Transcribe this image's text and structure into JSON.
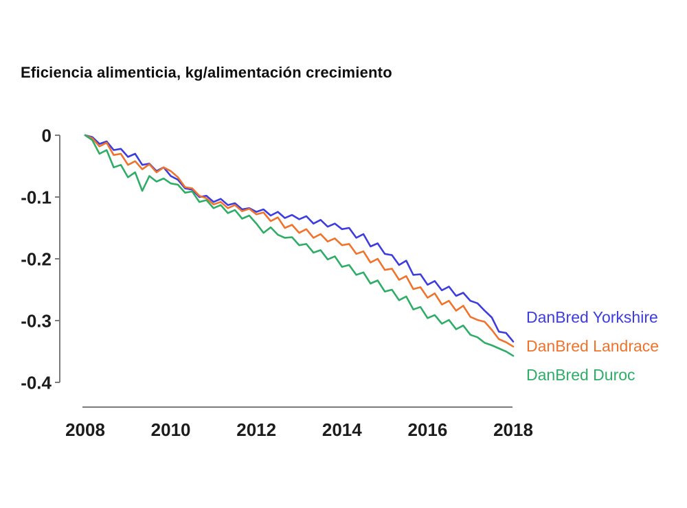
{
  "title": "Eficiencia alimenticia, kg/alimentación crecimiento",
  "colors": {
    "background": "#ffffff",
    "axis": "#7a7a7a",
    "tick_text": "#1c1c1c",
    "yorkshire_blue": "#3c3cdf",
    "landrace_orange": "#f0722b",
    "duroc_green": "#2ead67"
  },
  "chart_data": {
    "type": "line",
    "title": "Eficiencia alimenticia, kg/alimentación crecimiento",
    "xlabel": "",
    "ylabel": "",
    "x": {
      "start": 2008,
      "end": 2018,
      "points": 61
    },
    "xlim": [
      2008,
      2018
    ],
    "ylim": [
      -0.4,
      0
    ],
    "x_ticks": [
      "2008",
      "2010",
      "2012",
      "2014",
      "2016",
      "2018"
    ],
    "x_tick_values": [
      2008,
      2010,
      2012,
      2014,
      2016,
      2018
    ],
    "y_ticks": [
      "0",
      "-0.1",
      "-0.2",
      "-0.3",
      "-0.4"
    ],
    "y_tick_values": [
      0,
      -0.1,
      -0.2,
      -0.3,
      -0.4
    ],
    "grid": false,
    "legend_position": "right",
    "series": [
      {
        "name": "DanBred Yorkshire",
        "color": "#3c3cdf",
        "values": [
          0.0,
          -0.003,
          -0.014,
          -0.01,
          -0.024,
          -0.022,
          -0.035,
          -0.03,
          -0.048,
          -0.046,
          -0.058,
          -0.052,
          -0.066,
          -0.072,
          -0.086,
          -0.088,
          -0.1,
          -0.098,
          -0.108,
          -0.103,
          -0.113,
          -0.11,
          -0.12,
          -0.118,
          -0.124,
          -0.12,
          -0.13,
          -0.124,
          -0.134,
          -0.129,
          -0.136,
          -0.131,
          -0.143,
          -0.137,
          -0.148,
          -0.143,
          -0.152,
          -0.15,
          -0.166,
          -0.16,
          -0.18,
          -0.175,
          -0.192,
          -0.194,
          -0.21,
          -0.203,
          -0.226,
          -0.225,
          -0.242,
          -0.236,
          -0.251,
          -0.245,
          -0.26,
          -0.255,
          -0.268,
          -0.272,
          -0.284,
          -0.295,
          -0.318,
          -0.32,
          -0.334
        ]
      },
      {
        "name": "DanBred Landrace",
        "color": "#f0722b",
        "values": [
          0.0,
          -0.005,
          -0.018,
          -0.012,
          -0.032,
          -0.03,
          -0.048,
          -0.042,
          -0.055,
          -0.047,
          -0.06,
          -0.052,
          -0.058,
          -0.068,
          -0.084,
          -0.086,
          -0.098,
          -0.102,
          -0.112,
          -0.108,
          -0.118,
          -0.113,
          -0.123,
          -0.119,
          -0.128,
          -0.125,
          -0.139,
          -0.133,
          -0.15,
          -0.145,
          -0.158,
          -0.152,
          -0.166,
          -0.16,
          -0.172,
          -0.167,
          -0.178,
          -0.176,
          -0.192,
          -0.188,
          -0.206,
          -0.2,
          -0.218,
          -0.216,
          -0.234,
          -0.228,
          -0.249,
          -0.246,
          -0.263,
          -0.256,
          -0.274,
          -0.268,
          -0.284,
          -0.276,
          -0.294,
          -0.299,
          -0.302,
          -0.315,
          -0.33,
          -0.335,
          -0.342
        ]
      },
      {
        "name": "DanBred Duroc",
        "color": "#2ead67",
        "values": [
          0.0,
          -0.008,
          -0.03,
          -0.024,
          -0.052,
          -0.048,
          -0.068,
          -0.06,
          -0.09,
          -0.066,
          -0.075,
          -0.07,
          -0.078,
          -0.08,
          -0.093,
          -0.091,
          -0.108,
          -0.105,
          -0.118,
          -0.113,
          -0.126,
          -0.121,
          -0.135,
          -0.13,
          -0.143,
          -0.158,
          -0.149,
          -0.161,
          -0.166,
          -0.165,
          -0.178,
          -0.176,
          -0.19,
          -0.186,
          -0.201,
          -0.196,
          -0.213,
          -0.21,
          -0.226,
          -0.222,
          -0.24,
          -0.235,
          -0.253,
          -0.25,
          -0.267,
          -0.261,
          -0.282,
          -0.278,
          -0.296,
          -0.291,
          -0.305,
          -0.299,
          -0.314,
          -0.308,
          -0.323,
          -0.327,
          -0.336,
          -0.34,
          -0.345,
          -0.35,
          -0.357
        ]
      }
    ]
  }
}
